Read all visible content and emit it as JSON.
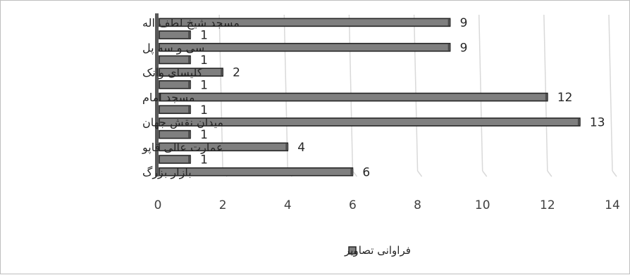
{
  "chart_data": {
    "type": "bar",
    "orientation": "horizontal",
    "xlim": [
      0,
      14
    ],
    "x_ticks": [
      "0",
      "2",
      "4",
      "6",
      "8",
      "10",
      "12",
      "14"
    ],
    "grid": true,
    "legend_position": "bottom",
    "legend": "فراوانی تصاویر",
    "bars": [
      {
        "label": "مسجد شیخ لطف اله",
        "value": 9
      },
      {
        "label": "",
        "value": 1
      },
      {
        "label": "سی و سه پل",
        "value": 9
      },
      {
        "label": "",
        "value": 1
      },
      {
        "label": "کلیسای وانک",
        "value": 2
      },
      {
        "label": "",
        "value": 1
      },
      {
        "label": "مسجد امام",
        "value": 12
      },
      {
        "label": "",
        "value": 1
      },
      {
        "label": "میدان نقش جهان",
        "value": 13
      },
      {
        "label": "",
        "value": 1
      },
      {
        "label": "عمارت عالی قاپو",
        "value": 4
      },
      {
        "label": "",
        "value": 1
      },
      {
        "label": "بازار بزرگ",
        "value": 6
      }
    ],
    "colors": {
      "bar_fill": "#7f7f7f",
      "bar_edge": "#262626",
      "bar_side": "#4d4d4d",
      "axis": "#595959",
      "grid": "#d9d9d9"
    }
  }
}
